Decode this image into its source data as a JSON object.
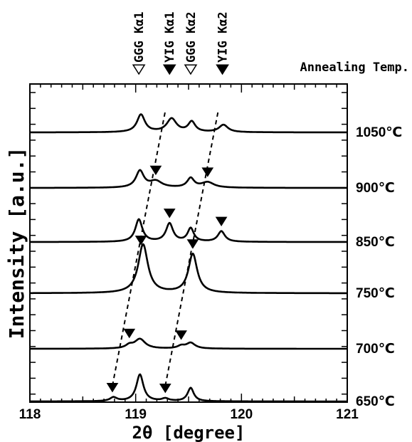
{
  "chart_data": {
    "type": "line",
    "title": "",
    "xlabel": "2θ [degree]",
    "ylabel": "Intensity [a.u.]",
    "xlim": [
      118,
      121
    ],
    "x_ticks": [
      "118",
      "119",
      "120",
      "121"
    ],
    "legend_title": "Annealing Temp.",
    "peak_markers": [
      {
        "label": "GGG Kα1",
        "x": 119.03,
        "style": "open"
      },
      {
        "label": "YIG Kα1",
        "x": 119.32,
        "style": "filled"
      },
      {
        "label": "GGG Kα2",
        "x": 119.52,
        "style": "open"
      },
      {
        "label": "YIG Kα2",
        "x": 119.82,
        "style": "filled"
      }
    ],
    "series": [
      {
        "name": "1050℃",
        "peaks": [
          {
            "x": 119.05,
            "height": 0.55,
            "width": 0.045
          },
          {
            "x": 119.34,
            "height": 0.42,
            "width": 0.055
          },
          {
            "x": 119.53,
            "height": 0.32,
            "width": 0.04
          },
          {
            "x": 119.83,
            "height": 0.23,
            "width": 0.05
          }
        ],
        "yig_markers": []
      },
      {
        "name": "900℃",
        "peaks": [
          {
            "x": 119.04,
            "height": 0.52,
            "width": 0.045
          },
          {
            "x": 119.19,
            "height": 0.2,
            "width": 0.07
          },
          {
            "x": 119.52,
            "height": 0.29,
            "width": 0.04
          },
          {
            "x": 119.68,
            "height": 0.17,
            "width": 0.07
          }
        ],
        "yig_markers": [
          119.19,
          119.68
        ]
      },
      {
        "name": "850℃",
        "peaks": [
          {
            "x": 119.03,
            "height": 0.7,
            "width": 0.04
          },
          {
            "x": 119.32,
            "height": 0.57,
            "width": 0.04
          },
          {
            "x": 119.52,
            "height": 0.42,
            "width": 0.035
          },
          {
            "x": 119.81,
            "height": 0.33,
            "width": 0.04
          }
        ],
        "yig_markers": [
          119.32,
          119.81
        ]
      },
      {
        "name": "750℃",
        "peaks": [
          {
            "x": 119.07,
            "height": 1.52,
            "width": 0.055
          },
          {
            "x": 119.54,
            "height": 1.22,
            "width": 0.05
          }
        ],
        "yig_markers": [
          119.05,
          119.54
        ]
      },
      {
        "name": "700℃",
        "peaks": [
          {
            "x": 118.94,
            "height": 0.1,
            "width": 0.04
          },
          {
            "x": 119.04,
            "height": 0.3,
            "width": 0.06
          },
          {
            "x": 119.43,
            "height": 0.08,
            "width": 0.04
          },
          {
            "x": 119.52,
            "height": 0.18,
            "width": 0.05
          }
        ],
        "yig_markers": [
          118.94,
          119.43
        ]
      },
      {
        "name": "650℃",
        "peaks": [
          {
            "x": 118.79,
            "height": 0.12,
            "width": 0.04
          },
          {
            "x": 119.04,
            "height": 0.84,
            "width": 0.04
          },
          {
            "x": 119.28,
            "height": 0.08,
            "width": 0.04
          },
          {
            "x": 119.52,
            "height": 0.42,
            "width": 0.035
          }
        ],
        "yig_markers": [
          118.78,
          119.28
        ]
      }
    ],
    "trend_lines": [
      {
        "from_series": "650℃",
        "to_series": "1050℃",
        "x_from": 118.78,
        "x_to": 119.28
      },
      {
        "from_series": "650℃",
        "to_series": "1050℃",
        "x_from": 119.28,
        "x_to": 119.78
      }
    ],
    "grid": false
  }
}
